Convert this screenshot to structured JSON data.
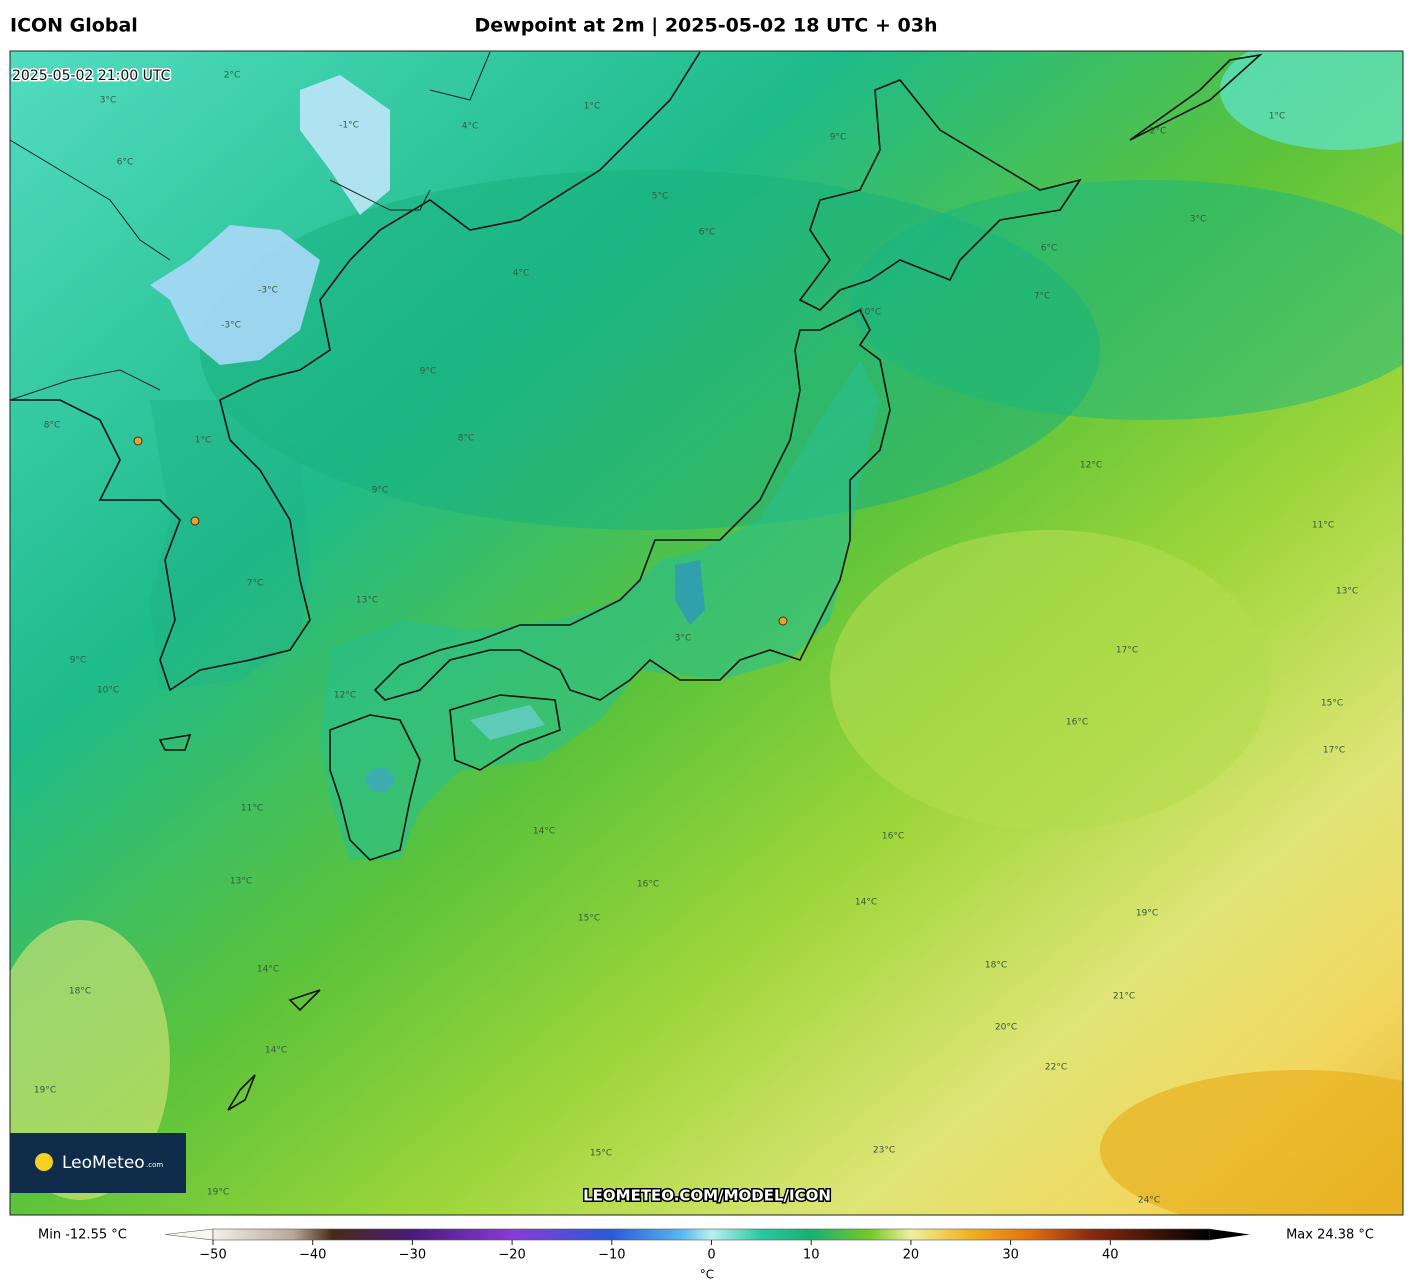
{
  "header": {
    "model": "ICON Global",
    "title": "Dewpoint at 2m | 2025-05-02 18 UTC + 03h"
  },
  "map": {
    "valid_time": "2025-05-02 21:00 UTC",
    "watermark": "LEOMETEO.COM/MODEL/ICON",
    "logo": {
      "name": "LeoMeteo",
      "suffix": ".com"
    },
    "contour_labels": [
      "1°C",
      "4°C",
      "5°C",
      "6°C",
      "4°C",
      "9°C",
      "2°C",
      "1°C",
      "3°C",
      "6°C",
      "7°C",
      "10°C",
      "12°C",
      "11°C",
      "13°C",
      "17°C",
      "15°C",
      "16°C",
      "17°C",
      "16°C",
      "14°C",
      "19°C",
      "18°C",
      "21°C",
      "20°C",
      "22°C",
      "23°C",
      "24°C",
      "9°C",
      "8°C",
      "9°C",
      "13°C",
      "12°C",
      "14°C",
      "16°C",
      "15°C",
      "14°C",
      "18°C",
      "14°C",
      "19°C",
      "19°C",
      "15°C",
      "13°C",
      "11°C",
      "10°C",
      "9°C",
      "8°C",
      "1°C",
      "7°C",
      "3°C",
      "2°C",
      "3°C",
      "6°C",
      "-1°C",
      "-3°C",
      "-3°C"
    ]
  },
  "colorbar": {
    "min_label": "Min -12.55 °C",
    "max_label": "Max 24.38 °C",
    "unit": "°C",
    "lim": [
      -50,
      50
    ],
    "ticks": [
      {
        "value": -50,
        "label": "−50"
      },
      {
        "value": -40,
        "label": "−40"
      },
      {
        "value": -30,
        "label": "−30"
      },
      {
        "value": -20,
        "label": "−20"
      },
      {
        "value": -10,
        "label": "−10"
      },
      0,
      10,
      20,
      30,
      40
    ]
  }
}
